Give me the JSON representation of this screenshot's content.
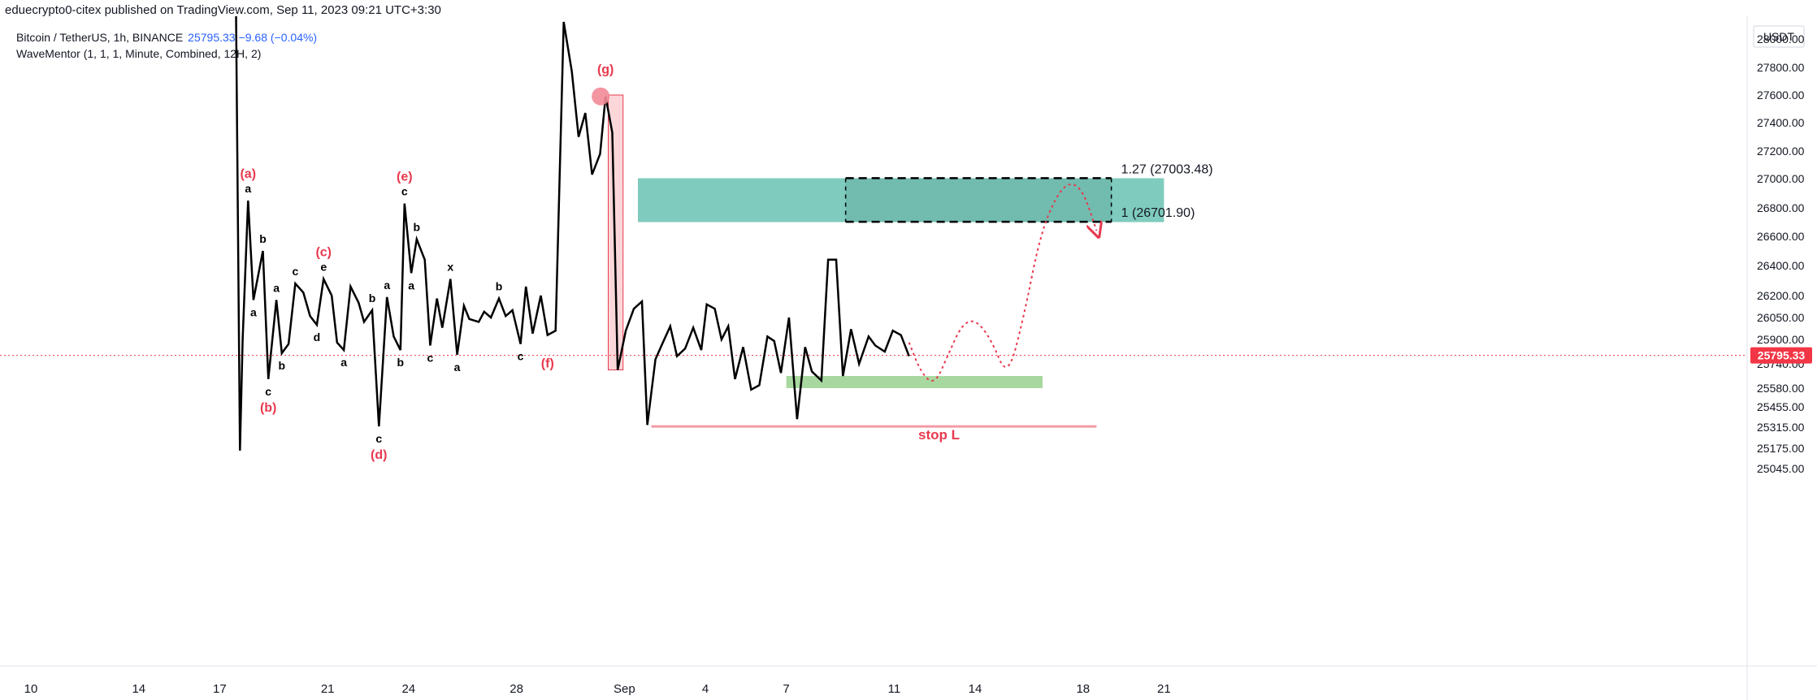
{
  "header": {
    "published": "eduecrypto0-citex published on TradingView.com, Sep 11, 2023 09:21 UTC+3:30"
  },
  "legend": {
    "symbol": "Bitcoin / TetherUS, 1h, BINANCE",
    "price": "25795.33",
    "change": "−9.68 (−0.04%)",
    "indicator": "WaveMentor (1, 1, 1, Minute, Combined, 12H, 2)"
  },
  "colors": {
    "price_line": "#000000",
    "wave_major": "#e8394e",
    "target_zone": "#7fcbbd",
    "support_zone": "#a8d8a0",
    "stop_line": "#f29aa5",
    "highlight_box": "#fbd7da",
    "last_price_badge": "#f23645"
  },
  "chart_data": {
    "type": "line",
    "y_unit": "USDT",
    "ylim": [
      25000,
      28150
    ],
    "y_ticks": [
      "28000.00",
      "27800.00",
      "27600.00",
      "27400.00",
      "27200.00",
      "27000.00",
      "26800.00",
      "26600.00",
      "26400.00",
      "26200.00",
      "26050.00",
      "25900.00",
      "25740.00",
      "25580.00",
      "25455.00",
      "25315.00",
      "25175.00",
      "25045.00"
    ],
    "x_ticks": [
      "10",
      "14",
      "17",
      "21",
      "24",
      "28",
      "Sep",
      "4",
      "7",
      "11",
      "14",
      "18",
      "21"
    ],
    "last_price": "25795.33",
    "series": [
      {
        "points": [
          [
            17.6,
            28300
          ],
          [
            17.75,
            25160
          ],
          [
            17.85,
            25900
          ],
          [
            18.05,
            26850
          ],
          [
            18.25,
            26170
          ],
          [
            18.6,
            26500
          ],
          [
            18.8,
            25640
          ],
          [
            19.1,
            26170
          ],
          [
            19.3,
            25810
          ],
          [
            19.55,
            25870
          ],
          [
            19.8,
            26280
          ],
          [
            20.1,
            26220
          ],
          [
            20.35,
            26060
          ],
          [
            20.6,
            26000
          ],
          [
            20.85,
            26310
          ],
          [
            21.15,
            26200
          ],
          [
            21.35,
            25880
          ],
          [
            21.6,
            25830
          ],
          [
            21.85,
            26260
          ],
          [
            22.15,
            26150
          ],
          [
            22.35,
            26020
          ],
          [
            22.65,
            26100
          ],
          [
            22.9,
            25320
          ],
          [
            23.2,
            26190
          ],
          [
            23.45,
            25920
          ],
          [
            23.7,
            25830
          ],
          [
            23.85,
            26830
          ],
          [
            24.1,
            26350
          ],
          [
            24.3,
            26580
          ],
          [
            24.6,
            26440
          ],
          [
            24.8,
            25860
          ],
          [
            25.05,
            26180
          ],
          [
            25.25,
            25980
          ],
          [
            25.55,
            26310
          ],
          [
            25.8,
            25800
          ],
          [
            26.05,
            26130
          ],
          [
            26.25,
            26040
          ],
          [
            26.6,
            26020
          ],
          [
            26.8,
            26090
          ],
          [
            27.05,
            26050
          ],
          [
            27.35,
            26180
          ],
          [
            27.6,
            26060
          ],
          [
            27.85,
            26100
          ],
          [
            28.15,
            25870
          ],
          [
            28.35,
            26260
          ],
          [
            28.6,
            25940
          ],
          [
            28.9,
            26200
          ],
          [
            29.15,
            25930
          ],
          [
            29.45,
            25960
          ],
          [
            29.75,
            28120
          ],
          [
            30.05,
            27770
          ],
          [
            30.3,
            27300
          ],
          [
            30.55,
            27470
          ],
          [
            30.8,
            27030
          ],
          [
            31.1,
            27180
          ],
          [
            31.3,
            27590
          ],
          [
            31.55,
            27330
          ],
          [
            31.75,
            25700
          ],
          [
            32.05,
            25960
          ],
          [
            32.35,
            26110
          ],
          [
            32.65,
            26160
          ],
          [
            32.85,
            25330
          ],
          [
            33.15,
            25770
          ],
          [
            33.4,
            25870
          ],
          [
            33.7,
            25990
          ],
          [
            33.95,
            25790
          ],
          [
            34.25,
            25840
          ],
          [
            34.55,
            25980
          ],
          [
            34.85,
            25830
          ],
          [
            35.05,
            26140
          ],
          [
            35.35,
            26110
          ],
          [
            35.6,
            25900
          ],
          [
            35.85,
            25990
          ],
          [
            36.1,
            25640
          ],
          [
            36.4,
            25850
          ],
          [
            36.7,
            25570
          ],
          [
            37.0,
            25600
          ],
          [
            37.3,
            25920
          ],
          [
            37.55,
            25890
          ],
          [
            37.8,
            25680
          ],
          [
            38.1,
            26050
          ],
          [
            38.4,
            25370
          ],
          [
            38.7,
            25850
          ],
          [
            38.95,
            25690
          ],
          [
            39.3,
            25630
          ],
          [
            39.55,
            26440
          ],
          [
            39.85,
            26440
          ],
          [
            40.1,
            25660
          ],
          [
            40.4,
            25970
          ],
          [
            40.7,
            25740
          ],
          [
            41.05,
            25920
          ],
          [
            41.3,
            25860
          ],
          [
            41.65,
            25820
          ],
          [
            41.95,
            25960
          ],
          [
            42.25,
            25930
          ],
          [
            42.55,
            25790
          ]
        ]
      }
    ],
    "fib_levels": [
      {
        "label": "1.27 (27003.48)",
        "value": 27003.48
      },
      {
        "label": "1 (26701.90)",
        "value": 26701.9
      }
    ],
    "target_zone": {
      "x": [
        32.5,
        52.0
      ],
      "y": [
        26700,
        27003
      ]
    },
    "support_zone": {
      "x": [
        38.0,
        47.5
      ],
      "y": [
        25580,
        25660
      ]
    },
    "stop_loss": {
      "label": "stop L",
      "value": 25320,
      "x": [
        33.0,
        49.5
      ]
    },
    "highlight_box": {
      "x": [
        31.4,
        31.95
      ],
      "y": [
        25700,
        27600
      ]
    },
    "major_waves": [
      {
        "label": "(a)",
        "x": 18.05,
        "y": 26850,
        "pos": "above"
      },
      {
        "label": "(b)",
        "x": 18.8,
        "y": 25640,
        "pos": "below"
      },
      {
        "label": "(c)",
        "x": 20.85,
        "y": 26310,
        "pos": "above"
      },
      {
        "label": "(d)",
        "x": 22.9,
        "y": 25320,
        "pos": "below"
      },
      {
        "label": "(e)",
        "x": 23.85,
        "y": 26830,
        "pos": "above"
      },
      {
        "label": "(f)",
        "x": 29.15,
        "y": 25930,
        "pos": "below"
      },
      {
        "label": "(g)",
        "x": 31.3,
        "y": 27590,
        "pos": "above"
      }
    ],
    "minor_waves": [
      {
        "label": "a",
        "x": 18.05,
        "y": 26850,
        "pos": "above"
      },
      {
        "label": "a",
        "x": 18.25,
        "y": 26170,
        "pos": "below"
      },
      {
        "label": "b",
        "x": 18.6,
        "y": 26500,
        "pos": "above"
      },
      {
        "label": "c",
        "x": 18.8,
        "y": 25640,
        "pos": "below"
      },
      {
        "label": "a",
        "x": 19.1,
        "y": 26170,
        "pos": "above"
      },
      {
        "label": "b",
        "x": 19.3,
        "y": 25810,
        "pos": "below"
      },
      {
        "label": "c",
        "x": 19.8,
        "y": 26280,
        "pos": "above"
      },
      {
        "label": "d",
        "x": 20.6,
        "y": 26000,
        "pos": "below"
      },
      {
        "label": "e",
        "x": 20.85,
        "y": 26310,
        "pos": "above"
      },
      {
        "label": "a",
        "x": 21.6,
        "y": 25830,
        "pos": "below"
      },
      {
        "label": "b",
        "x": 22.65,
        "y": 26100,
        "pos": "above"
      },
      {
        "label": "c",
        "x": 22.9,
        "y": 25320,
        "pos": "below"
      },
      {
        "label": "a",
        "x": 23.2,
        "y": 26190,
        "pos": "above"
      },
      {
        "label": "b",
        "x": 23.7,
        "y": 25830,
        "pos": "below"
      },
      {
        "label": "c",
        "x": 23.85,
        "y": 26830,
        "pos": "above"
      },
      {
        "label": "a",
        "x": 24.1,
        "y": 26350,
        "pos": "below"
      },
      {
        "label": "b",
        "x": 24.3,
        "y": 26580,
        "pos": "above"
      },
      {
        "label": "c",
        "x": 24.8,
        "y": 25860,
        "pos": "below"
      },
      {
        "label": "x",
        "x": 25.55,
        "y": 26310,
        "pos": "above"
      },
      {
        "label": "a",
        "x": 25.8,
        "y": 25800,
        "pos": "below"
      },
      {
        "label": "b",
        "x": 27.35,
        "y": 26180,
        "pos": "above"
      },
      {
        "label": "c",
        "x": 28.15,
        "y": 25870,
        "pos": "below"
      }
    ],
    "projection": [
      [
        42.55,
        25880
      ],
      [
        43.0,
        25680
      ],
      [
        43.5,
        25600
      ],
      [
        44.0,
        25800
      ],
      [
        44.5,
        26000
      ],
      [
        45.0,
        26040
      ],
      [
        45.6,
        25900
      ],
      [
        46.2,
        25640
      ],
      [
        46.8,
        26050
      ],
      [
        47.4,
        26600
      ],
      [
        48.0,
        26880
      ],
      [
        48.5,
        26980
      ],
      [
        49.0,
        26920
      ],
      [
        49.5,
        26640
      ]
    ]
  }
}
